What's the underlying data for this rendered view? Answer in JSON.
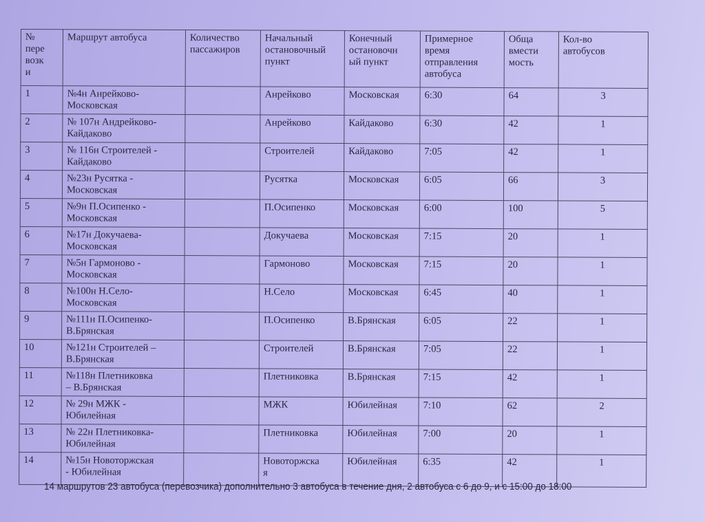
{
  "table": {
    "headers": [
      "№ перевозки",
      "Маршрут автобуса",
      "Количество пассажиров",
      "Начальный остановочный пункт",
      "Конечный остановочный пункт",
      "Примерное время отправления автобуса",
      "Общая вместимость",
      "Кол-во автобусов"
    ],
    "headers_display": [
      "№\nпере\nвозк\nи",
      "Маршрут автобуса",
      "Количество\nпассажиров",
      "Начальный\nостановочный\nпункт",
      "Конечный\nостановочн\nый пункт",
      "Примерное\nвремя\nотправления\nавтобуса",
      "Обща\nвмести\nмость",
      "Кол-во\nавтобусов"
    ],
    "rows": [
      [
        "1",
        "№4н Анрейково-\nМосковская",
        "",
        "Анрейково",
        "Московская",
        "6:30",
        "64",
        "3"
      ],
      [
        "2",
        "№ 107н Андрейково-\nКайдаково",
        "",
        "Анрейково",
        "Кайдаково",
        "6:30",
        "42",
        "1"
      ],
      [
        "3",
        "№ 116н Строителей -\nКайдаково",
        "",
        "Строителей",
        "Кайдаково",
        "7:05",
        "42",
        "1"
      ],
      [
        "4",
        "№23н Русятка -\nМосковская",
        "",
        "Русятка",
        "Московская",
        "6:05",
        "66",
        "3"
      ],
      [
        "5",
        "№9н П.Осипенко -\nМосковская",
        "",
        "П.Осипенко",
        "Московская",
        "6:00",
        "100",
        "5"
      ],
      [
        "6",
        "№17н Докучаева-\nМосковская",
        "",
        "Докучаева",
        "Московская",
        "7:15",
        "20",
        "1"
      ],
      [
        "7",
        "№5н Гармоново -\nМосковская",
        "",
        "Гармоново",
        "Московская",
        "7:15",
        "20",
        "1"
      ],
      [
        "8",
        "№100н Н.Село-\nМосковская",
        "",
        "Н.Село",
        "Московская",
        "6:45",
        "40",
        "1"
      ],
      [
        "9",
        "№111н П.Осипенко-\nВ.Брянская",
        "",
        "П.Осипенко",
        "В.Брянская",
        "6:05",
        "22",
        "1"
      ],
      [
        "10",
        "№121н Строителей –\nВ.Брянская",
        "",
        "Строителей",
        "В.Брянская",
        "7:05",
        "22",
        "1"
      ],
      [
        "11",
        "№118н Плетниковка\n– В.Брянская",
        "",
        "Плетниковка",
        "В.Брянская",
        "7:15",
        "42",
        "1"
      ],
      [
        "12",
        "№ 29н МЖК -\nЮбилейная",
        "",
        "МЖК",
        "Юбилейная",
        "7:10",
        "62",
        "2"
      ],
      [
        "13",
        "№ 22н Плетниковка-\nЮбилейная",
        "",
        "Плетниковка",
        "Юбилейная",
        "7:00",
        "20",
        "1"
      ],
      [
        "14",
        "№15н Новоторжская\n- Юбилейная",
        "",
        "Новоторжска\nя",
        "Юбилейная",
        "6:35",
        "42",
        "1"
      ]
    ]
  },
  "footer": "14 маршрутов 23 автобуса (перевозчика) дополнительно 3 автобуса в течение дня, 2 автобуса с 6 до 9, и с 15:00 до 18:00"
}
